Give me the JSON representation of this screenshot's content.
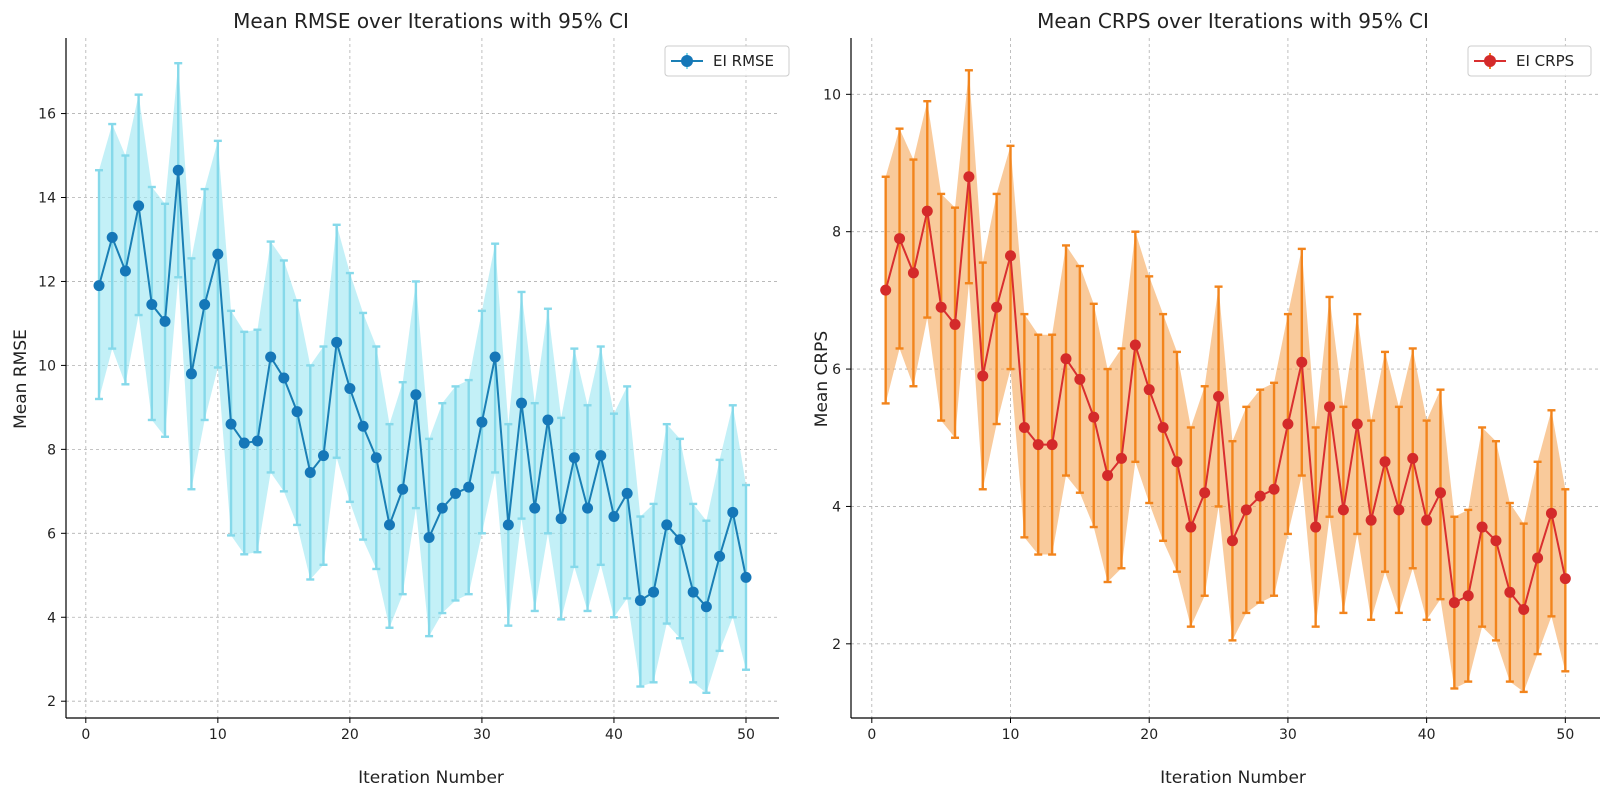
{
  "colors": {
    "rmse_line": "#1a7fb5",
    "rmse_marker": "#1577b8",
    "rmse_band": "#9ee6f2",
    "rmse_err": "#86d9ea",
    "crps_line": "#d92f2f",
    "crps_marker": "#d42a2a",
    "crps_band": "#f5a95e",
    "crps_err": "#f2841c"
  },
  "chart_data": [
    {
      "type": "line",
      "title": "Mean RMSE over Iterations with 95% CI",
      "xlabel": "Iteration Number",
      "ylabel": "Mean RMSE",
      "xlim": [
        -1.5,
        52.5
      ],
      "ylim": [
        1.6,
        17.8
      ],
      "xticks": [
        0,
        10,
        20,
        30,
        40,
        50
      ],
      "yticks": [
        2,
        4,
        6,
        8,
        10,
        12,
        14,
        16
      ],
      "grid": true,
      "legend": {
        "position": "top-right",
        "label": "EI RMSE"
      },
      "series": [
        {
          "name": "EI RMSE",
          "x": [
            1,
            2,
            3,
            4,
            5,
            6,
            7,
            8,
            9,
            10,
            11,
            12,
            13,
            14,
            15,
            16,
            17,
            18,
            19,
            20,
            21,
            22,
            23,
            24,
            25,
            26,
            27,
            28,
            29,
            30,
            31,
            32,
            33,
            34,
            35,
            36,
            37,
            38,
            39,
            40,
            41,
            42,
            43,
            44,
            45,
            46,
            47,
            48,
            49,
            50
          ],
          "values": [
            11.9,
            13.05,
            12.25,
            13.8,
            11.45,
            11.05,
            14.65,
            9.8,
            11.45,
            12.65,
            8.6,
            8.15,
            8.2,
            10.2,
            9.7,
            8.9,
            7.45,
            7.85,
            10.55,
            9.45,
            8.55,
            7.8,
            6.2,
            7.05,
            9.3,
            5.9,
            6.6,
            6.95,
            7.1,
            8.65,
            10.2,
            6.2,
            9.1,
            6.6,
            8.7,
            6.35,
            7.8,
            6.6,
            7.85,
            6.4,
            6.95,
            4.4,
            4.6,
            6.2,
            5.85,
            4.6,
            4.25,
            5.45,
            6.5,
            4.95
          ],
          "lower": [
            9.2,
            10.4,
            9.55,
            11.2,
            8.7,
            8.3,
            12.1,
            7.05,
            8.7,
            9.95,
            5.95,
            5.5,
            5.55,
            7.45,
            7.0,
            6.2,
            4.9,
            5.25,
            7.8,
            6.75,
            5.85,
            5.15,
            3.75,
            4.55,
            6.6,
            3.55,
            4.1,
            4.4,
            4.55,
            6.0,
            7.45,
            3.8,
            6.35,
            4.15,
            6.0,
            3.95,
            5.2,
            4.15,
            5.25,
            4.0,
            4.45,
            2.35,
            2.45,
            3.85,
            3.5,
            2.45,
            2.2,
            3.2,
            4.0,
            2.75
          ],
          "upper": [
            14.65,
            15.75,
            15.0,
            16.45,
            14.25,
            13.85,
            17.2,
            12.55,
            14.2,
            15.35,
            11.3,
            10.8,
            10.85,
            12.95,
            12.5,
            11.55,
            10.0,
            10.45,
            13.35,
            12.2,
            11.25,
            10.45,
            8.6,
            9.6,
            12.0,
            8.25,
            9.1,
            9.5,
            9.65,
            11.3,
            12.9,
            8.6,
            11.75,
            9.1,
            11.35,
            8.75,
            10.4,
            9.05,
            10.45,
            8.85,
            9.5,
            6.4,
            6.7,
            8.6,
            8.25,
            6.7,
            6.3,
            7.75,
            9.05,
            7.15
          ]
        }
      ]
    },
    {
      "type": "line",
      "title": "Mean CRPS over Iterations with 95% CI",
      "xlabel": "Iteration Number",
      "ylabel": "Mean CRPS",
      "xlim": [
        -1.5,
        52.5
      ],
      "ylim": [
        0.92,
        10.82
      ],
      "xticks": [
        0,
        10,
        20,
        30,
        40,
        50
      ],
      "yticks": [
        2,
        4,
        6,
        8,
        10
      ],
      "grid": true,
      "legend": {
        "position": "top-right",
        "label": "EI CRPS"
      },
      "series": [
        {
          "name": "EI CRPS",
          "x": [
            1,
            2,
            3,
            4,
            5,
            6,
            7,
            8,
            9,
            10,
            11,
            12,
            13,
            14,
            15,
            16,
            17,
            18,
            19,
            20,
            21,
            22,
            23,
            24,
            25,
            26,
            27,
            28,
            29,
            30,
            31,
            32,
            33,
            34,
            35,
            36,
            37,
            38,
            39,
            40,
            41,
            42,
            43,
            44,
            45,
            46,
            47,
            48,
            49,
            50
          ],
          "values": [
            7.15,
            7.9,
            7.4,
            8.3,
            6.9,
            6.65,
            8.8,
            5.9,
            6.9,
            7.65,
            5.15,
            4.9,
            4.9,
            6.15,
            5.85,
            5.3,
            4.45,
            4.7,
            6.35,
            5.7,
            5.15,
            4.65,
            3.7,
            4.2,
            5.6,
            3.5,
            3.95,
            4.15,
            4.25,
            5.2,
            6.1,
            3.7,
            5.45,
            3.95,
            5.2,
            3.8,
            4.65,
            3.95,
            4.7,
            3.8,
            4.2,
            2.6,
            2.7,
            3.7,
            3.5,
            2.75,
            2.5,
            3.25,
            3.9,
            2.95
          ],
          "lower": [
            5.5,
            6.3,
            5.75,
            6.75,
            5.25,
            5.0,
            7.25,
            4.25,
            5.2,
            6.0,
            3.55,
            3.3,
            3.3,
            4.45,
            4.2,
            3.7,
            2.9,
            3.1,
            4.65,
            4.05,
            3.5,
            3.05,
            2.25,
            2.7,
            4.0,
            2.05,
            2.45,
            2.6,
            2.7,
            3.6,
            4.45,
            2.25,
            3.85,
            2.45,
            3.6,
            2.35,
            3.05,
            2.45,
            3.1,
            2.35,
            2.65,
            1.35,
            1.45,
            2.25,
            2.05,
            1.45,
            1.3,
            1.85,
            2.4,
            1.6
          ],
          "upper": [
            8.8,
            9.5,
            9.05,
            9.9,
            8.55,
            8.35,
            10.35,
            7.55,
            8.55,
            9.25,
            6.8,
            6.5,
            6.5,
            7.8,
            7.5,
            6.95,
            6.0,
            6.3,
            8.0,
            7.35,
            6.8,
            6.25,
            5.15,
            5.75,
            7.2,
            4.95,
            5.45,
            5.7,
            5.8,
            6.8,
            7.75,
            5.15,
            7.05,
            5.45,
            6.8,
            5.25,
            6.25,
            5.45,
            6.3,
            5.25,
            5.7,
            3.85,
            3.95,
            5.15,
            4.95,
            4.05,
            3.75,
            4.65,
            5.4,
            4.25
          ]
        }
      ]
    }
  ]
}
